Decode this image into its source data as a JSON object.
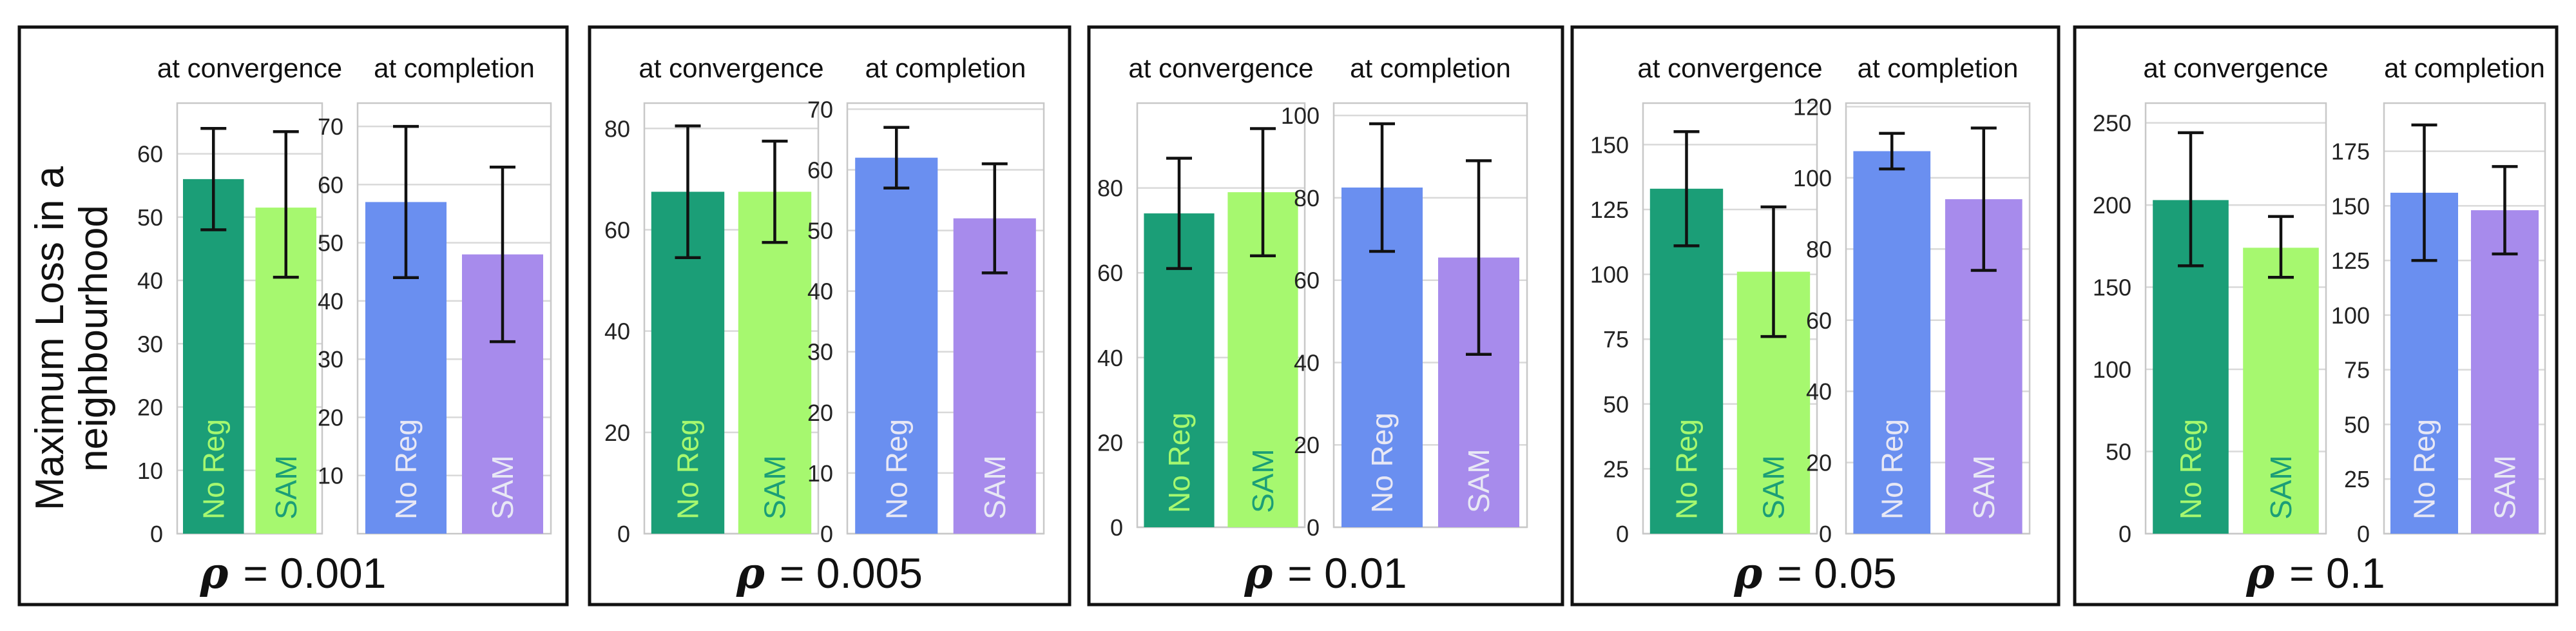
{
  "figure": {
    "ylabel": "Maximum Loss in a neighbourhood",
    "ylabel_lines": [
      "Maximum Loss in a",
      "neighbourhood"
    ],
    "rho_symbol": "ρ",
    "colors": {
      "no_reg_convergence": "#1b9e77",
      "sam_convergence": "#a6f86f",
      "no_reg_completion": "#6a8ff0",
      "sam_completion": "#a78bec",
      "label_on_dark_green": "#a6f86f",
      "label_on_light_green": "#1b9e77",
      "label_on_blue_purple": "#e8e8f5",
      "errorbar": "#111111",
      "grid": "#d9d9d9"
    }
  },
  "chart_data": [
    {
      "type": "bar",
      "rho": "= 0.001",
      "subplots": [
        {
          "title": "at convergence",
          "categories": [
            "No Reg",
            "SAM"
          ],
          "values": [
            56,
            51.5
          ],
          "err_low": [
            48,
            40.5
          ],
          "err_high": [
            64,
            63.5
          ],
          "ylim": [
            0,
            68
          ],
          "yticks": [
            0,
            10,
            20,
            30,
            40,
            50,
            60
          ],
          "colors": [
            "#1b9e77",
            "#a6f86f"
          ],
          "label_colors": [
            "#a6f86f",
            "#1b9e77"
          ]
        },
        {
          "title": "at completion",
          "categories": [
            "No Reg",
            "SAM"
          ],
          "values": [
            57,
            48
          ],
          "err_low": [
            44,
            33
          ],
          "err_high": [
            70,
            63
          ],
          "ylim": [
            0,
            74
          ],
          "yticks": [
            10,
            20,
            30,
            40,
            50,
            60,
            70
          ],
          "colors": [
            "#6a8ff0",
            "#a78bec"
          ],
          "label_colors": [
            "#e8e8f5",
            "#e8e8f5"
          ]
        }
      ]
    },
    {
      "type": "bar",
      "rho": "= 0.005",
      "subplots": [
        {
          "title": "at convergence",
          "categories": [
            "No Reg",
            "SAM"
          ],
          "values": [
            67.5,
            67.5
          ],
          "err_low": [
            54.5,
            57.5
          ],
          "err_high": [
            80.5,
            77.5
          ],
          "ylim": [
            0,
            85
          ],
          "yticks": [
            0,
            20,
            40,
            60,
            80
          ],
          "colors": [
            "#1b9e77",
            "#a6f86f"
          ],
          "label_colors": [
            "#a6f86f",
            "#1b9e77"
          ]
        },
        {
          "title": "at completion",
          "categories": [
            "No Reg",
            "SAM"
          ],
          "values": [
            62,
            52
          ],
          "err_low": [
            57,
            43
          ],
          "err_high": [
            67,
            61
          ],
          "ylim": [
            0,
            71
          ],
          "yticks": [
            0,
            10,
            20,
            30,
            40,
            50,
            60,
            70
          ],
          "colors": [
            "#6a8ff0",
            "#a78bec"
          ],
          "label_colors": [
            "#e8e8f5",
            "#e8e8f5"
          ]
        }
      ]
    },
    {
      "type": "bar",
      "rho": "= 0.01",
      "subplots": [
        {
          "title": "at convergence",
          "categories": [
            "No Reg",
            "SAM"
          ],
          "values": [
            74,
            79
          ],
          "err_low": [
            61,
            64
          ],
          "err_high": [
            87,
            94
          ],
          "ylim": [
            0,
            100
          ],
          "yticks": [
            0,
            20,
            40,
            60,
            80
          ],
          "colors": [
            "#1b9e77",
            "#a6f86f"
          ],
          "label_colors": [
            "#a6f86f",
            "#1b9e77"
          ]
        },
        {
          "title": "at completion",
          "categories": [
            "No Reg",
            "SAM"
          ],
          "values": [
            82.5,
            65.5
          ],
          "err_low": [
            67,
            42
          ],
          "err_high": [
            98,
            89
          ],
          "ylim": [
            0,
            103
          ],
          "yticks": [
            0,
            20,
            40,
            60,
            80,
            100
          ],
          "colors": [
            "#6a8ff0",
            "#a78bec"
          ],
          "label_colors": [
            "#e8e8f5",
            "#e8e8f5"
          ]
        }
      ]
    },
    {
      "type": "bar",
      "rho": "= 0.05",
      "subplots": [
        {
          "title": "at convergence",
          "categories": [
            "No Reg",
            "SAM"
          ],
          "values": [
            133,
            101
          ],
          "err_low": [
            111,
            76
          ],
          "err_high": [
            155,
            126
          ],
          "ylim": [
            0,
            166
          ],
          "yticks": [
            0,
            25,
            50,
            75,
            100,
            125,
            150
          ],
          "colors": [
            "#1b9e77",
            "#a6f86f"
          ],
          "label_colors": [
            "#a6f86f",
            "#1b9e77"
          ]
        },
        {
          "title": "at completion",
          "categories": [
            "No Reg",
            "SAM"
          ],
          "values": [
            107.5,
            94
          ],
          "err_low": [
            102.5,
            74
          ],
          "err_high": [
            112.5,
            114
          ],
          "ylim": [
            0,
            121
          ],
          "yticks": [
            0,
            20,
            40,
            60,
            80,
            100,
            120
          ],
          "colors": [
            "#6a8ff0",
            "#a78bec"
          ],
          "label_colors": [
            "#e8e8f5",
            "#e8e8f5"
          ]
        }
      ]
    },
    {
      "type": "bar",
      "rho": "= 0.1",
      "subplots": [
        {
          "title": "at convergence",
          "categories": [
            "No Reg",
            "SAM"
          ],
          "values": [
            203,
            174
          ],
          "err_low": [
            163,
            156
          ],
          "err_high": [
            244,
            193
          ],
          "ylim": [
            0,
            262
          ],
          "yticks": [
            0,
            50,
            100,
            150,
            200,
            250
          ],
          "colors": [
            "#1b9e77",
            "#a6f86f"
          ],
          "label_colors": [
            "#a6f86f",
            "#1b9e77"
          ]
        },
        {
          "title": "at completion",
          "categories": [
            "No Reg",
            "SAM"
          ],
          "values": [
            156,
            148
          ],
          "err_low": [
            125,
            128
          ],
          "err_high": [
            187,
            168
          ],
          "ylim": [
            0,
            197
          ],
          "yticks": [
            0,
            25,
            50,
            75,
            100,
            125,
            150,
            175
          ],
          "colors": [
            "#6a8ff0",
            "#a78bec"
          ],
          "label_colors": [
            "#e8e8f5",
            "#e8e8f5"
          ]
        }
      ]
    }
  ]
}
